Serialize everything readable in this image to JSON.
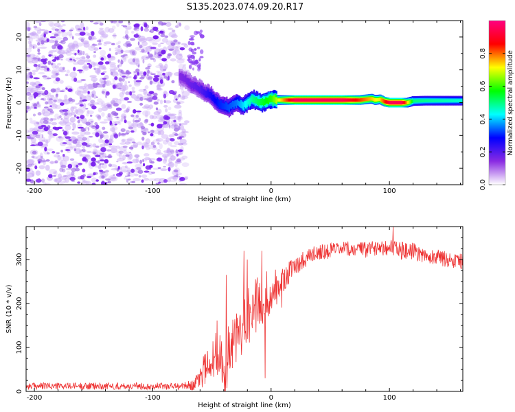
{
  "figure_title": "S135.2023.074.09.20.R17",
  "chart_data": [
    {
      "type": "heatmap",
      "title": "S135.2023.074.09.20.R17",
      "xlabel": "Height of straight line (km)",
      "ylabel": "Frequency (Hz)",
      "xlim": [
        -207,
        162
      ],
      "ylim": [
        -25,
        25
      ],
      "xticks": [
        -200,
        -100,
        0,
        100
      ],
      "yticks": [
        -20,
        -10,
        0,
        10,
        20
      ],
      "noise_region_x": [
        -207,
        -75
      ],
      "signal_trace": {
        "x": [
          -78,
          -72,
          -68,
          -64,
          -60,
          -56,
          -52,
          -48,
          -44,
          -40,
          -36,
          -32,
          -28,
          -24,
          -20,
          -16,
          -12,
          -8,
          -4,
          0,
          5,
          10,
          20,
          40,
          60,
          75,
          80,
          85,
          88,
          92,
          96,
          100,
          105,
          110,
          115,
          120,
          130,
          140,
          150,
          162
        ],
        "y": [
          8,
          7,
          5.5,
          5,
          4,
          3,
          2.5,
          1,
          -0.5,
          -1,
          -1.5,
          -0.5,
          0,
          -1,
          0,
          1,
          0.5,
          0,
          0.5,
          1,
          0.8,
          0.8,
          0.8,
          0.8,
          0.8,
          0.8,
          1,
          1.2,
          0.8,
          1,
          0.3,
          0,
          0,
          0,
          0,
          0.5,
          0.6,
          0.6,
          0.6,
          0.6
        ]
      },
      "trace_amplitude": {
        "x": [
          -78,
          -60,
          -45,
          -30,
          -15,
          0,
          20,
          60,
          90,
          100,
          110,
          120,
          162
        ],
        "amp": [
          0.15,
          0.2,
          0.3,
          0.35,
          0.5,
          0.6,
          0.95,
          0.95,
          0.7,
          0.95,
          0.95,
          0.5,
          0.45
        ]
      },
      "colorbar": {
        "label": "Normalized spectral amplitude",
        "range": [
          0,
          1
        ],
        "ticks": [
          "0.0",
          "0.2",
          "0.4",
          "0.6",
          "0.8"
        ],
        "tick_values": [
          0,
          0.2,
          0.4,
          0.6,
          0.8
        ],
        "colors": [
          "#ffffff",
          "#8a2be2",
          "#0000ff",
          "#00ffff",
          "#00ff00",
          "#ffff00",
          "#ff0000",
          "#ff0080"
        ]
      }
    },
    {
      "type": "line",
      "xlabel": "Height of straight line (km)",
      "ylabel": "SNR (10 * v/v)",
      "xlim": [
        -207,
        162
      ],
      "ylim": [
        0,
        375
      ],
      "xticks": [
        -200,
        -100,
        0,
        100
      ],
      "yticks": [
        0,
        100,
        200,
        300
      ],
      "color": "#ee3333",
      "series": [
        {
          "name": "SNR",
          "envelope_x": [
            -207,
            -150,
            -100,
            -75,
            -65,
            -60,
            -55,
            -50,
            -45,
            -40,
            -35,
            -30,
            -25,
            -20,
            -15,
            -10,
            -5,
            0,
            5,
            10,
            15,
            20,
            30,
            40,
            50,
            60,
            70,
            80,
            90,
            100,
            110,
            120,
            130,
            140,
            150,
            162
          ],
          "envelope_mean": [
            12,
            12,
            12,
            12,
            15,
            30,
            60,
            70,
            90,
            55,
            110,
            120,
            150,
            170,
            190,
            200,
            210,
            220,
            230,
            250,
            270,
            285,
            305,
            318,
            320,
            322,
            325,
            320,
            330,
            328,
            320,
            318,
            310,
            305,
            300,
            295
          ],
          "envelope_spread": [
            8,
            8,
            8,
            8,
            12,
            30,
            40,
            50,
            60,
            50,
            60,
            70,
            70,
            70,
            70,
            60,
            50,
            40,
            35,
            30,
            25,
            22,
            20,
            18,
            18,
            18,
            18,
            20,
            20,
            20,
            20,
            20,
            18,
            18,
            18,
            18
          ],
          "spikes": [
            {
              "x": -38,
              "y": 265
            },
            {
              "x": -23,
              "y": 320
            },
            {
              "x": -20,
              "y": 300
            },
            {
              "x": -8,
              "y": 320
            },
            {
              "x": -5,
              "y": 30
            },
            {
              "x": 103,
              "y": 375
            }
          ]
        }
      ]
    }
  ]
}
